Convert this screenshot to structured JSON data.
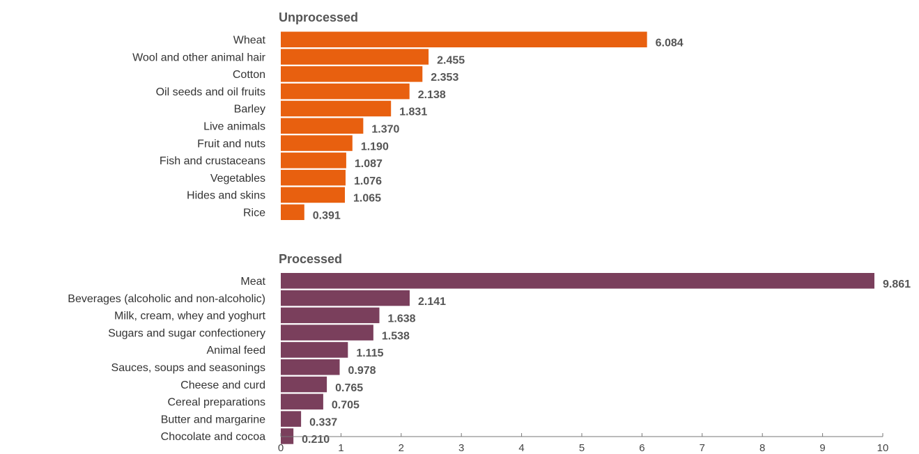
{
  "chart_data": {
    "type": "bar",
    "orientation": "horizontal",
    "xlim": [
      0,
      10
    ],
    "x_ticks": [
      0,
      1,
      2,
      3,
      4,
      5,
      6,
      7,
      8,
      9,
      10
    ],
    "grid": false,
    "panels": [
      {
        "title": "Unprocessed",
        "color": "#e8600f",
        "categories": [
          "Wheat",
          "Wool and other animal hair",
          "Cotton",
          "Oil seeds and oil fruits",
          "Barley",
          "Live animals",
          "Fruit and nuts",
          "Fish and crustaceans",
          "Vegetables",
          "Hides and skins",
          "Rice"
        ],
        "values": [
          6.084,
          2.455,
          2.353,
          2.138,
          1.831,
          1.37,
          1.19,
          1.087,
          1.076,
          1.065,
          0.391
        ],
        "value_labels": [
          "6.084",
          "2.455",
          "2.353",
          "2.138",
          "1.831",
          "1.370",
          "1.190",
          "1.087",
          "1.076",
          "1.065",
          "0.391"
        ]
      },
      {
        "title": "Processed",
        "color": "#7a3f5c",
        "categories": [
          "Meat",
          "Beverages (alcoholic and non-alcoholic)",
          "Milk, cream, whey and yoghurt",
          "Sugars and sugar confectionery",
          "Animal feed",
          "Sauces, soups and seasonings",
          "Cheese and curd",
          "Cereal preparations",
          "Butter and margarine",
          "Chocolate and cocoa"
        ],
        "values": [
          9.861,
          2.141,
          1.638,
          1.538,
          1.115,
          0.978,
          0.765,
          0.705,
          0.337,
          0.21
        ],
        "value_labels": [
          "9.861",
          "2.141",
          "1.638",
          "1.538",
          "1.115",
          "0.978",
          "0.765",
          "0.705",
          "0.337",
          "0.210"
        ]
      }
    ]
  }
}
